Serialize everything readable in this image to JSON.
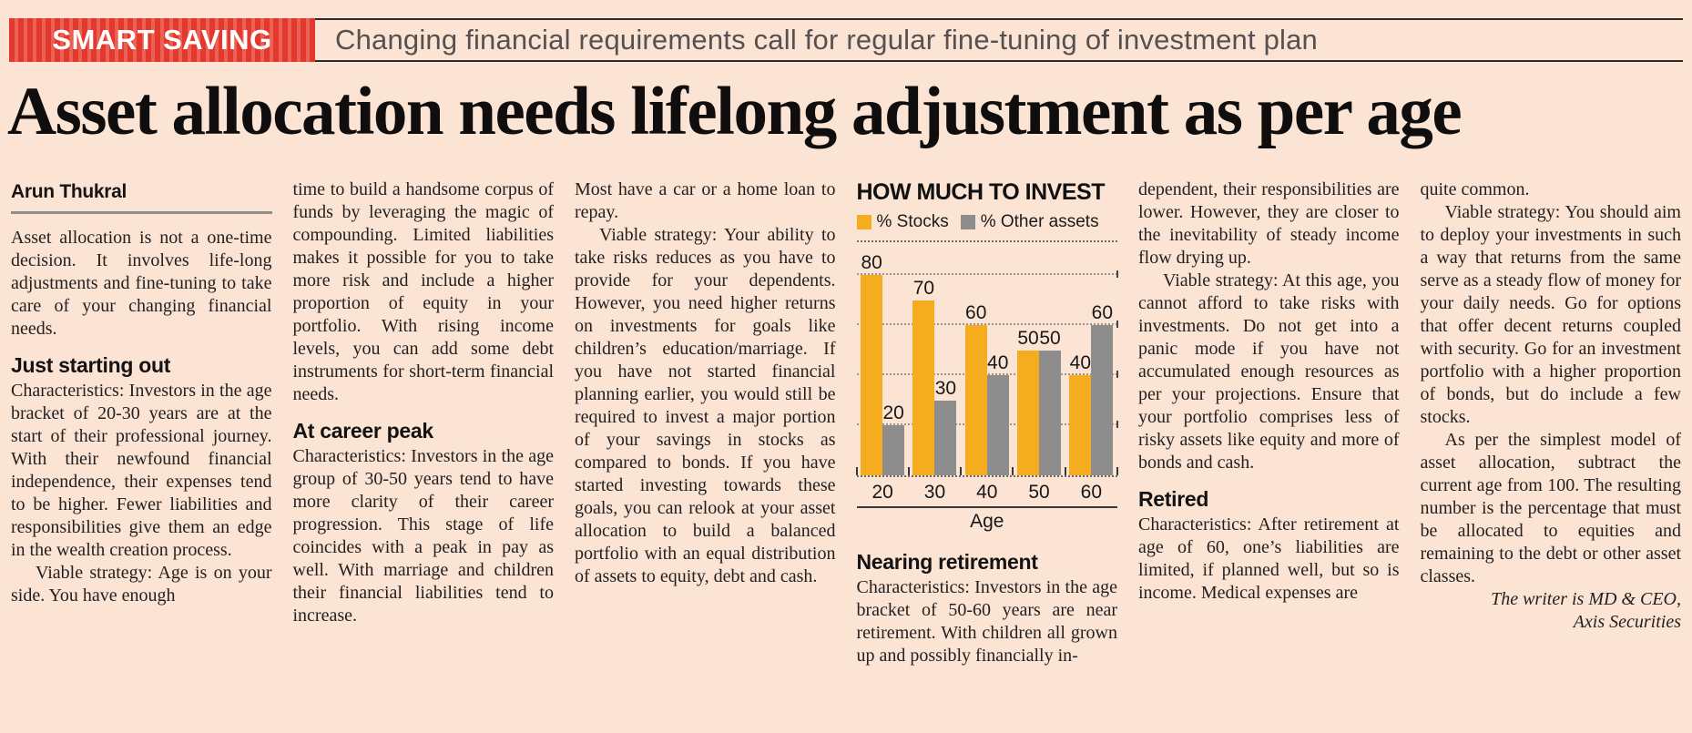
{
  "banner": {
    "label": "SMART SAVING",
    "strapline": "Changing financial requirements call for regular fine-tuning of investment plan"
  },
  "headline": "Asset allocation needs lifelong adjustment as per age",
  "byline": "Arun Thukral",
  "columns": {
    "col1": {
      "para1": "Asset allocation is not a one-time decision. It involves life-long adjustments and fine-tuning to take care of your changing financial needs.",
      "heading": "Just starting out",
      "para2": "Characteristics: Investors in the age bracket of 20-30 years are at the start of their professional journey. With their newfound financial independence, their expenses tend to be higher. Fewer liabilities and responsibilities give them an edge in the wealth creation process.",
      "para3": "Viable strategy: Age is on your side. You have enough"
    },
    "col2": {
      "para1": "time to build a handsome corpus of funds by leveraging the magic of compounding. Limited liabilities makes it possible for you to take more risk and include a higher proportion of equity in your portfolio. With rising income levels, you can add some debt instruments for short-term financial needs.",
      "heading": "At career peak",
      "para2": "Characteristics: Investors in the age group of 30-50 years tend to have more clarity of their career progression. This stage of life coincides with a peak in pay as well. With marriage and children their financial liabilities tend to increase."
    },
    "col3": {
      "para1": "Most have a car or a home loan to repay.",
      "para2": "Viable strategy: Your ability to take risks reduces as you have to provide for your dependents. However, you need higher returns on investments for goals like children’s education/marriage. If you have not started financial planning earlier, you would still be required to invest a major portion of your savings in stocks as compared to bonds. If you have started investing towards these goals, you can relook at your asset allocation to build a balanced portfolio with an equal distribution of assets to equity, debt and cash."
    },
    "col4": {
      "heading": "Nearing retirement",
      "para1": "Characteristics: Investors in the age bracket of 50-60 years are near retirement. With children all grown up and possibly financially in-"
    },
    "col5": {
      "para1": "dependent, their responsibilities are lower. However, they are closer to the inevitability of steady income flow drying up.",
      "para2": "Viable strategy: At this age, you cannot afford to take risks with investments. Do not get into a panic mode if you have not accumulated enough resources as per your projections. Ensure that your portfolio comprises less of risky assets like equity and more of bonds and cash.",
      "heading": "Retired",
      "para3": "Characteristics: After retirement at age of 60, one’s liabilities are limited, if planned well, but so is income. Medical expenses are"
    },
    "col6": {
      "para1": "quite common.",
      "para2": "Viable strategy: You should aim to deploy your investments in such a way that returns from the same serve as a steady flow of money for your daily needs. Go for options that offer decent returns coupled with security. Go for an investment portfolio with a higher proportion of bonds, but do include a few stocks.",
      "para3": "As per the simplest model of asset allocation, subtract the current age from 100. The resulting number is the percentage that must be allocated to equities and remaining to the debt or other asset classes.",
      "credit_line1": "The writer is MD & CEO,",
      "credit_line2": "Axis Securities"
    }
  },
  "chart_data": {
    "type": "bar",
    "title": "HOW MUCH TO INVEST",
    "xlabel": "Age",
    "categories": [
      "20",
      "30",
      "40",
      "50",
      "60"
    ],
    "series": [
      {
        "name": "% Stocks",
        "color": "#F5AC1E",
        "values": [
          80,
          70,
          60,
          50,
          40
        ]
      },
      {
        "name": "% Other assets",
        "color": "#8D8D8D",
        "values": [
          20,
          30,
          40,
          50,
          60
        ]
      }
    ],
    "ylim": [
      0,
      80
    ],
    "gridlines": [
      20,
      40,
      60,
      80
    ],
    "grid": "dotted",
    "legend_position": "top"
  },
  "colors": {
    "background": "#FBE4D3",
    "banner_red": "#E2382D",
    "banner_red_light": "#EC6156",
    "stocks_yellow": "#F5AC1E",
    "other_assets_gray": "#8D8D8D"
  }
}
